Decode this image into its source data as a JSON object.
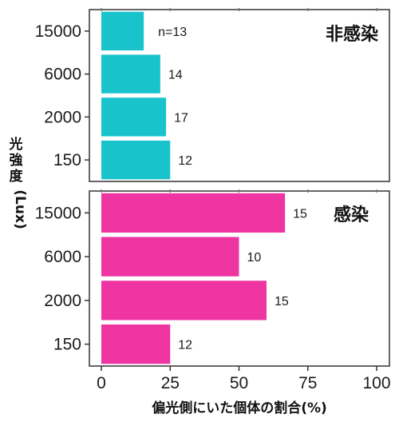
{
  "chart_data": [
    {
      "type": "bar",
      "orientation": "horizontal",
      "panel_title": "非感染",
      "categories": [
        "15000",
        "6000",
        "2000",
        "150"
      ],
      "values": [
        15.4,
        21.4,
        23.5,
        25.0
      ],
      "count_labels": [
        "n=13",
        "14",
        "17",
        "12"
      ],
      "color": "#18c3cc",
      "xlim": [
        0,
        100
      ]
    },
    {
      "type": "bar",
      "orientation": "horizontal",
      "panel_title": "感染",
      "categories": [
        "15000",
        "6000",
        "2000",
        "150"
      ],
      "values": [
        66.7,
        50.0,
        60.0,
        25.0
      ],
      "count_labels": [
        "15",
        "10",
        "15",
        "12"
      ],
      "color": "#ee35a2",
      "xlim": [
        0,
        100
      ]
    }
  ],
  "x_axis": {
    "ticks": [
      "0",
      "25",
      "50",
      "75",
      "100"
    ],
    "title": "偏光側にいた個体の割合(%)"
  },
  "y_axis": {
    "title_lines": [
      "光",
      "強",
      "度",
      "(Lux)"
    ]
  }
}
